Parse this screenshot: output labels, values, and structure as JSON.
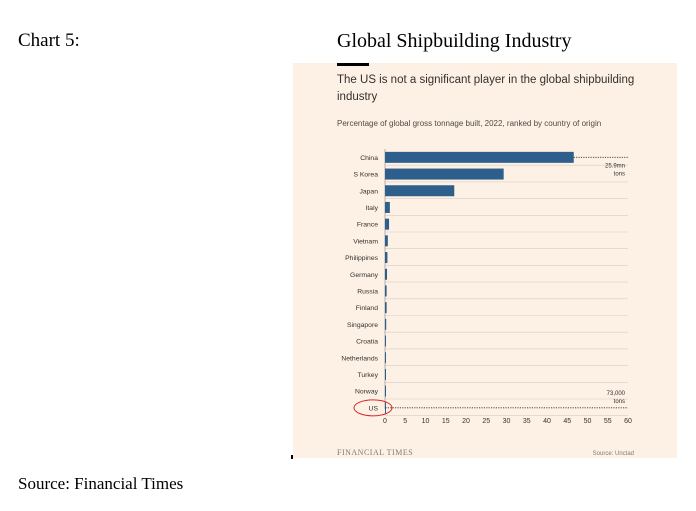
{
  "document": {
    "chart_label": "Chart 5:",
    "chart_heading": "Global Shipbuilding Industry",
    "source_line": "Source: Financial Times"
  },
  "colors": {
    "bar": "#2e5e8c",
    "panel_background": "#fdf1e5",
    "gridline": "#d8cdc3",
    "highlight_circle": "#d62728",
    "text": "#33302e"
  },
  "chart_data": {
    "type": "bar",
    "orientation": "horizontal",
    "title": "The US is not a significant player in the global shipbuilding industry",
    "subtitle": "Percentage of global gross tonnage built, 2022, ranked by country of origin",
    "categories": [
      "China",
      "S Korea",
      "Japan",
      "Italy",
      "France",
      "Vietnam",
      "Philippines",
      "Germany",
      "Russia",
      "Finland",
      "Singapore",
      "Croatia",
      "Netherlands",
      "Turkey",
      "Norway",
      "US"
    ],
    "values": [
      46.6,
      29.3,
      17.1,
      1.2,
      1.0,
      0.7,
      0.6,
      0.5,
      0.4,
      0.4,
      0.3,
      0.2,
      0.2,
      0.2,
      0.1,
      0.1
    ],
    "xlim": [
      0,
      60
    ],
    "x_ticks": [
      0,
      5,
      10,
      15,
      20,
      25,
      30,
      35,
      40,
      45,
      50,
      55,
      60
    ],
    "grid": true,
    "highlight": "US",
    "annotations": [
      {
        "category": "China",
        "text_line1": "25.9mn",
        "text_line2": "tons"
      },
      {
        "category": "US",
        "text_line1": "73,000",
        "text_line2": "tons"
      }
    ],
    "footer_left": "FINANCIAL TIMES",
    "footer_right": "Source: Unctad"
  }
}
